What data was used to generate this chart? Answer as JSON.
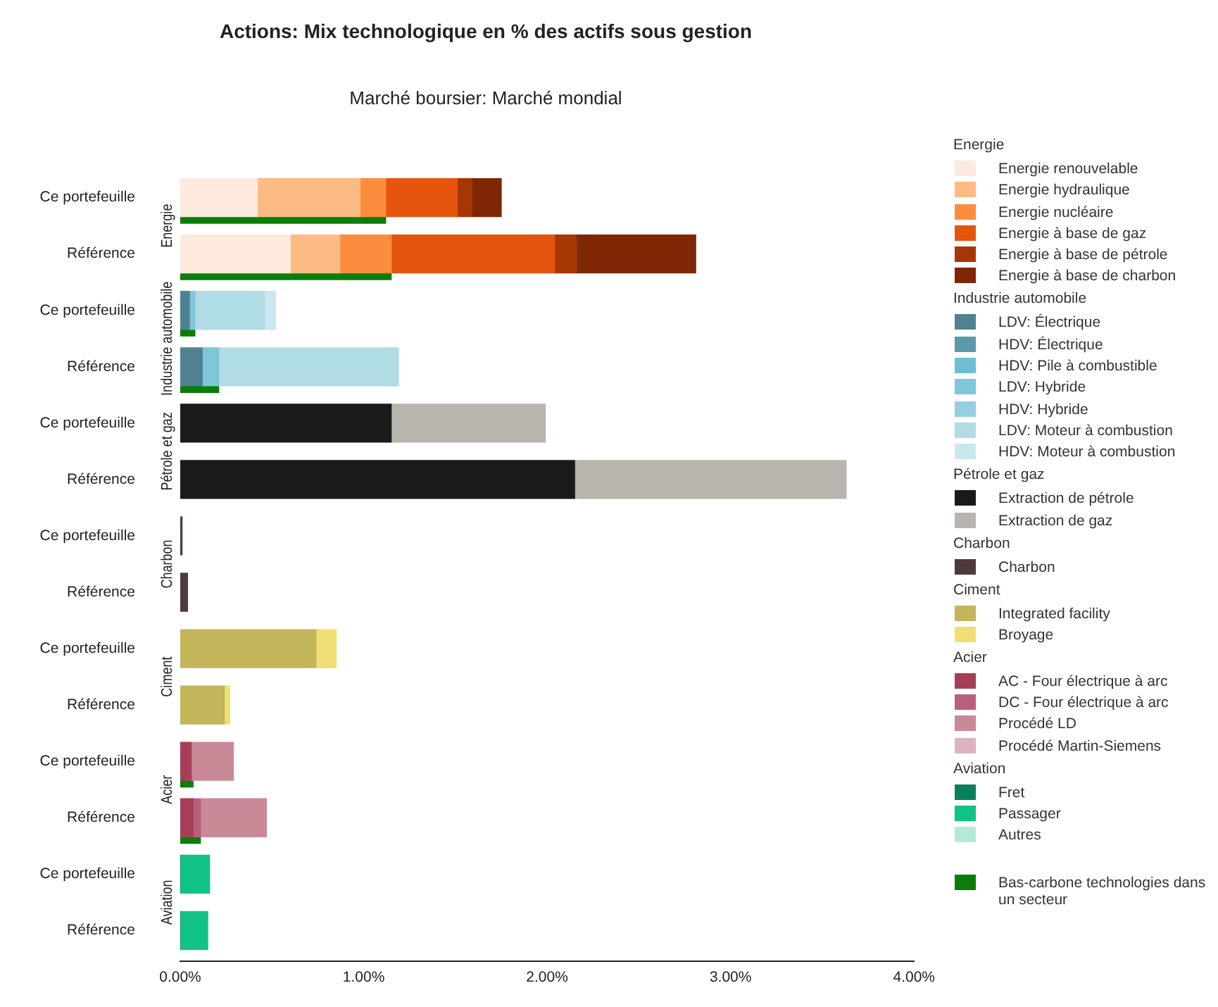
{
  "chart_data": {
    "type": "bar",
    "orientation": "horizontal",
    "title": "Actions: Mix technologique en % des actifs sous gestion",
    "subtitle": "Marché boursier: Marché mondial",
    "categories": [
      "Ce portefeuille",
      "Référence",
      "Ce portefeuille",
      "Référence",
      "Ce portefeuille",
      "Référence",
      "Ce portefeuille",
      "Référence",
      "Ce portefeuille",
      "Référence",
      "Ce portefeuille",
      "Référence",
      "Ce portefeuille",
      "Référence"
    ],
    "annotations": [
      "Energie",
      "Industrie automobile",
      "Pétrole et gaz",
      "Charbon",
      "Ciment",
      "Acier",
      "Aviation"
    ],
    "series": [
      {
        "name": "Energie renouvelable",
        "color": "#fdeadc",
        "base": [
          0,
          0,
          null,
          null,
          null,
          null,
          null,
          null,
          null,
          null,
          null,
          null,
          null,
          null
        ],
        "values": [
          0.42,
          0.6,
          null,
          null,
          null,
          null,
          null,
          null,
          null,
          null,
          null,
          null,
          null,
          null
        ]
      },
      {
        "name": "Energie hydraulique",
        "color": "#fdbb84",
        "base": [
          0.42,
          0.6,
          null,
          null,
          null,
          null,
          null,
          null,
          null,
          null,
          null,
          null,
          null,
          null
        ],
        "values": [
          0.56,
          0.27,
          null,
          null,
          null,
          null,
          null,
          null,
          null,
          null,
          null,
          null,
          null,
          null
        ]
      },
      {
        "name": "Energie nucléaire",
        "color": "#fc8d3c",
        "base": [
          0.98,
          0.87,
          null,
          null,
          null,
          null,
          null,
          null,
          null,
          null,
          null,
          null,
          null,
          null
        ],
        "values": [
          0.14,
          0.28,
          null,
          null,
          null,
          null,
          null,
          null,
          null,
          null,
          null,
          null,
          null,
          null
        ]
      },
      {
        "name": "Energie à base de gaz",
        "color": "#e6550d",
        "base": [
          1.12,
          1.15,
          null,
          null,
          null,
          null,
          null,
          null,
          null,
          null,
          null,
          null,
          null,
          null
        ],
        "values": [
          0.39,
          0.89,
          null,
          null,
          null,
          null,
          null,
          null,
          null,
          null,
          null,
          null,
          null,
          null
        ]
      },
      {
        "name": "Energie à base de pétrole",
        "color": "#a63603",
        "base": [
          1.51,
          2.04,
          null,
          null,
          null,
          null,
          null,
          null,
          null,
          null,
          null,
          null,
          null,
          null
        ],
        "values": [
          0.08,
          0.12,
          null,
          null,
          null,
          null,
          null,
          null,
          null,
          null,
          null,
          null,
          null,
          null
        ]
      },
      {
        "name": "Energie à base de charbon",
        "color": "#7f2704",
        "base": [
          1.59,
          2.16,
          null,
          null,
          null,
          null,
          null,
          null,
          null,
          null,
          null,
          null,
          null,
          null
        ],
        "values": [
          0.16,
          0.65,
          null,
          null,
          null,
          null,
          null,
          null,
          null,
          null,
          null,
          null,
          null,
          null
        ]
      },
      {
        "name": "LDV: Électrique",
        "color": "#4f8190",
        "base": [
          null,
          null,
          0,
          0,
          null,
          null,
          null,
          null,
          null,
          null,
          null,
          null,
          null,
          null
        ],
        "values": [
          null,
          null,
          0.05,
          0.12,
          null,
          null,
          null,
          null,
          null,
          null,
          null,
          null,
          null,
          null
        ]
      },
      {
        "name": "HDV: Électrique",
        "color": "#5b9aaa",
        "values": [
          null,
          null,
          0,
          0,
          null,
          null,
          null,
          null,
          null,
          null,
          null,
          null,
          null,
          null
        ]
      },
      {
        "name": "HDV: Pile à combustible",
        "color": "#6cbfd2",
        "values": [
          null,
          null,
          0,
          0,
          null,
          null,
          null,
          null,
          null,
          null,
          null,
          null,
          null,
          null
        ]
      },
      {
        "name": "LDV: Hybride",
        "color": "#7ec6d9",
        "base": [
          null,
          null,
          0.05,
          0.12,
          null,
          null,
          null,
          null,
          null,
          null,
          null,
          null,
          null,
          null
        ],
        "values": [
          null,
          null,
          0.03,
          0.09,
          null,
          null,
          null,
          null,
          null,
          null,
          null,
          null,
          null,
          null
        ]
      },
      {
        "name": "HDV: Hybride",
        "color": "#96d0e0",
        "values": [
          null,
          null,
          0,
          0,
          null,
          null,
          null,
          null,
          null,
          null,
          null,
          null,
          null,
          null
        ]
      },
      {
        "name": "LDV: Moteur à combustion",
        "color": "#b0dce6",
        "base": [
          null,
          null,
          0.08,
          0.21,
          null,
          null,
          null,
          null,
          null,
          null,
          null,
          null,
          null,
          null
        ],
        "values": [
          null,
          null,
          0.38,
          0.98,
          null,
          null,
          null,
          null,
          null,
          null,
          null,
          null,
          null,
          null
        ]
      },
      {
        "name": "HDV: Moteur à combustion",
        "color": "#cbe7ee",
        "base": [
          null,
          null,
          0.46,
          null,
          null,
          null,
          null,
          null,
          null,
          null,
          null,
          null,
          null,
          null
        ],
        "values": [
          null,
          null,
          0.06,
          0,
          null,
          null,
          null,
          null,
          null,
          null,
          null,
          null,
          null,
          null
        ]
      },
      {
        "name": "Extraction de pétrole",
        "color": "#1a1a1a",
        "base": [
          null,
          null,
          null,
          null,
          0,
          0,
          null,
          null,
          null,
          null,
          null,
          null,
          null,
          null
        ],
        "values": [
          null,
          null,
          null,
          null,
          1.15,
          2.15,
          null,
          null,
          null,
          null,
          null,
          null,
          null,
          null
        ]
      },
      {
        "name": "Extraction de gaz",
        "color": "#b8b4ae",
        "base": [
          null,
          null,
          null,
          null,
          1.15,
          2.15,
          null,
          null,
          null,
          null,
          null,
          null,
          null,
          null
        ],
        "values": [
          null,
          null,
          null,
          null,
          0.84,
          1.48,
          null,
          null,
          null,
          null,
          null,
          null,
          null,
          null
        ]
      },
      {
        "name": "Charbon",
        "color": "#4e3a3a",
        "base": [
          null,
          null,
          null,
          null,
          null,
          null,
          0,
          0,
          null,
          null,
          null,
          null,
          null,
          null
        ],
        "values": [
          null,
          null,
          null,
          null,
          null,
          null,
          0.01,
          0.04,
          null,
          null,
          null,
          null,
          null,
          null
        ]
      },
      {
        "name": "Integrated facility",
        "color": "#c2b55a",
        "base": [
          null,
          null,
          null,
          null,
          null,
          null,
          null,
          null,
          0,
          0,
          null,
          null,
          null,
          null
        ],
        "values": [
          null,
          null,
          null,
          null,
          null,
          null,
          null,
          null,
          0.74,
          0.24,
          null,
          null,
          null,
          null
        ]
      },
      {
        "name": "Broyage",
        "color": "#efdf73",
        "base": [
          null,
          null,
          null,
          null,
          null,
          null,
          null,
          null,
          0.74,
          0.24,
          null,
          null,
          null,
          null
        ],
        "values": [
          null,
          null,
          null,
          null,
          null,
          null,
          null,
          null,
          0.11,
          0.03,
          null,
          null,
          null,
          null
        ]
      },
      {
        "name": "AC - Four électrique à arc",
        "color": "#a53f57",
        "base": [
          null,
          null,
          null,
          null,
          null,
          null,
          null,
          null,
          null,
          null,
          0,
          0,
          null,
          null
        ],
        "values": [
          null,
          null,
          null,
          null,
          null,
          null,
          null,
          null,
          null,
          null,
          0.06,
          0.07,
          null,
          null
        ]
      },
      {
        "name": "DC - Four électrique à arc",
        "color": "#b8607a",
        "base": [
          null,
          null,
          null,
          null,
          null,
          null,
          null,
          null,
          null,
          null,
          null,
          0.07,
          null,
          null
        ],
        "values": [
          null,
          null,
          null,
          null,
          null,
          null,
          null,
          null,
          null,
          null,
          0,
          0.04,
          null,
          null
        ]
      },
      {
        "name": "Procédé LD",
        "color": "#c98a98",
        "base": [
          null,
          null,
          null,
          null,
          null,
          null,
          null,
          null,
          null,
          null,
          0.06,
          0.11,
          null,
          null
        ],
        "values": [
          null,
          null,
          null,
          null,
          null,
          null,
          null,
          null,
          null,
          null,
          0.23,
          0.36,
          null,
          null
        ]
      },
      {
        "name": "Procédé Martin-Siemens",
        "color": "#deb3bd",
        "values": [
          null,
          null,
          null,
          null,
          null,
          null,
          null,
          null,
          null,
          null,
          0,
          0,
          null,
          null
        ]
      },
      {
        "name": "Fret",
        "color": "#0b7f5c",
        "values": [
          null,
          null,
          null,
          null,
          null,
          null,
          null,
          null,
          null,
          null,
          null,
          null,
          0,
          0
        ]
      },
      {
        "name": "Passager",
        "color": "#10c285",
        "base": [
          null,
          null,
          null,
          null,
          null,
          null,
          null,
          null,
          null,
          null,
          null,
          null,
          0,
          0
        ],
        "values": [
          null,
          null,
          null,
          null,
          null,
          null,
          null,
          null,
          null,
          null,
          null,
          null,
          0.16,
          0.15
        ]
      },
      {
        "name": "Autres",
        "color": "#b3ead7",
        "values": [
          null,
          null,
          null,
          null,
          null,
          null,
          null,
          null,
          null,
          null,
          null,
          null,
          0,
          0
        ]
      },
      {
        "name": "Bas-carbone technologies dans un secteur",
        "color": "#0a7d0a",
        "values": [
          1.12,
          1.15,
          0.08,
          0.21,
          null,
          null,
          null,
          null,
          null,
          null,
          0.07,
          0.11,
          null,
          null
        ]
      }
    ],
    "xlim": [
      0,
      4
    ],
    "xticks": [
      {
        "value": 0,
        "label": "0.00%"
      },
      {
        "value": 1,
        "label": "1.00%"
      },
      {
        "value": 2,
        "label": "2.00%"
      },
      {
        "value": 3,
        "label": "3.00%"
      },
      {
        "value": 4,
        "label": "4.00%"
      }
    ],
    "legend": "right",
    "grid": false
  }
}
